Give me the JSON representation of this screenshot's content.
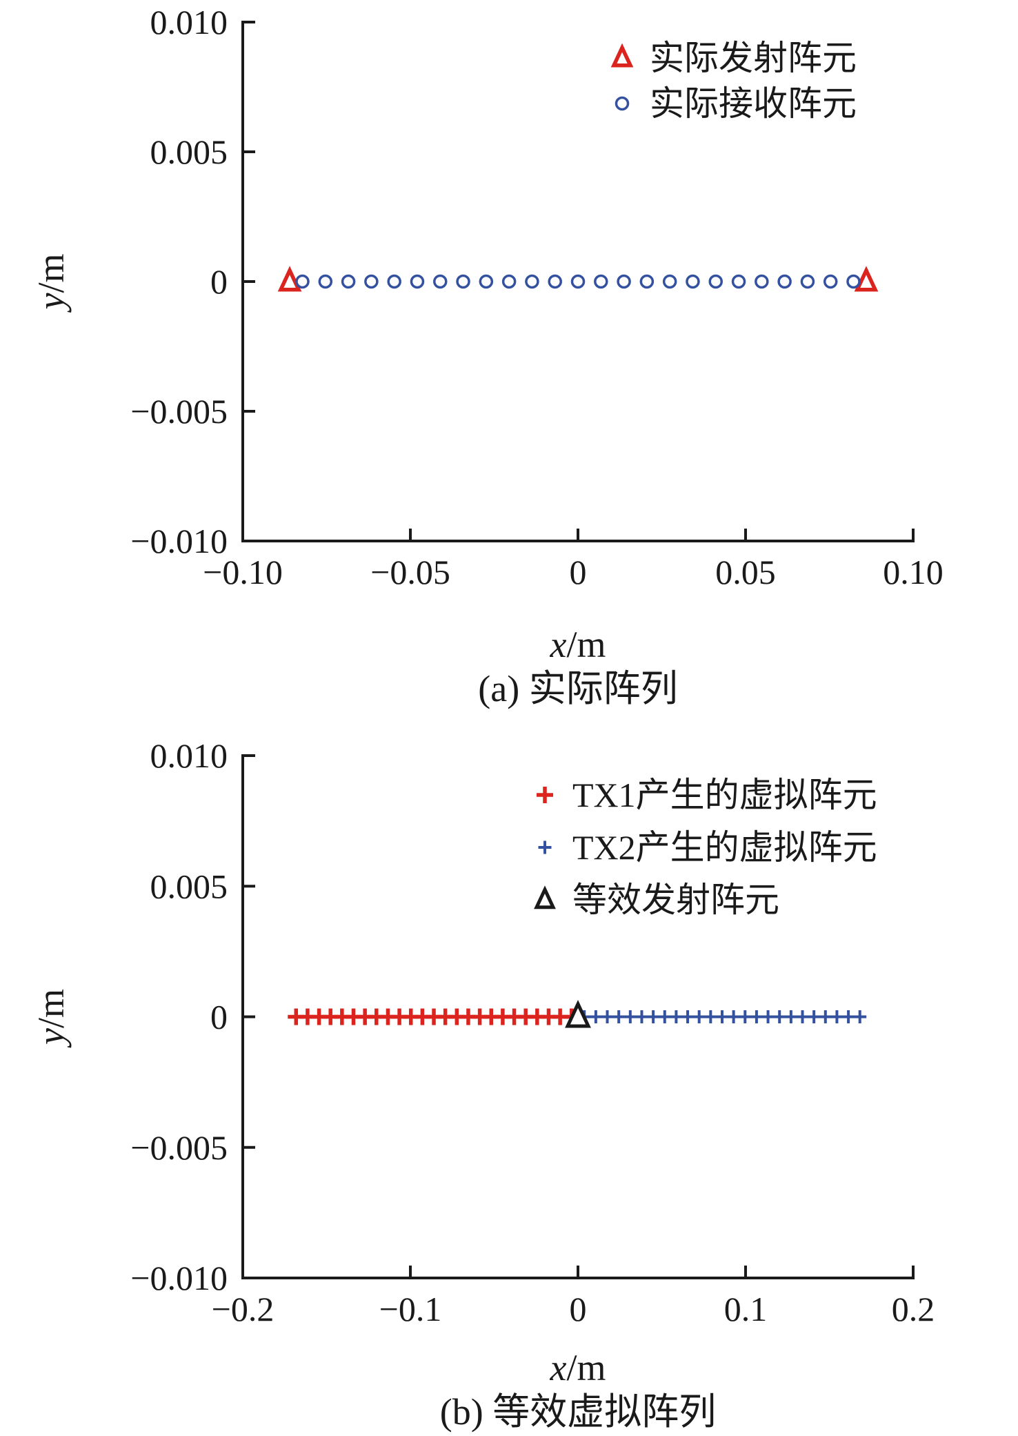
{
  "figure": {
    "background": "#ffffff",
    "colors": {
      "red": "#DC241F",
      "blue": "#33519E",
      "black": "#1A1A1A"
    }
  },
  "chart_data": [
    {
      "id": "a",
      "type": "scatter",
      "caption": "(a) 实际阵列",
      "xlabel": "x/m",
      "ylabel": "y/m",
      "xlim": [
        -0.1,
        0.1
      ],
      "ylim": [
        -0.01,
        0.01
      ],
      "grid": false,
      "legend_position": "upper-right-inside-no-box",
      "xticks": [
        -0.1,
        -0.05,
        0,
        0.05,
        0.1
      ],
      "xtick_labels": [
        "−0.10",
        "−0.05",
        "0",
        "0.05",
        "0.10"
      ],
      "yticks": [
        0.01,
        0.005,
        0,
        -0.005,
        -0.01
      ],
      "ytick_labels": [
        "0.010",
        "0.005",
        "0",
        "−0.005",
        "−0.010"
      ],
      "series": [
        {
          "name": "实际发射阵元",
          "marker": "triangle-open",
          "color_key": "red",
          "y": 0,
          "x": [
            -0.086,
            0.086
          ]
        },
        {
          "name": "实际接收阵元",
          "marker": "circle-open",
          "color_key": "blue",
          "y": 0,
          "x": [
            -0.0822,
            -0.07535,
            -0.0685,
            -0.06165,
            -0.0548,
            -0.04795,
            -0.0411,
            -0.03425,
            -0.0274,
            -0.02055,
            -0.0137,
            -0.00685,
            0,
            0.00685,
            0.0137,
            0.02055,
            0.0274,
            0.03425,
            0.0411,
            0.04795,
            0.0548,
            0.06165,
            0.0685,
            0.07535,
            0.0822
          ]
        }
      ]
    },
    {
      "id": "b",
      "type": "scatter",
      "caption": "(b) 等效虚拟阵列",
      "xlabel": "x/m",
      "ylabel": "y/m",
      "xlim": [
        -0.2,
        0.2
      ],
      "ylim": [
        -0.01,
        0.01
      ],
      "grid": false,
      "legend_position": "upper-right-inside-no-box",
      "xticks": [
        -0.2,
        -0.1,
        0,
        0.1,
        0.2
      ],
      "xtick_labels": [
        "−0.2",
        "−0.1",
        "0",
        "0.1",
        "0.2"
      ],
      "yticks": [
        0.01,
        0.005,
        0,
        -0.005,
        -0.01
      ],
      "ytick_labels": [
        "0.010",
        "0.005",
        "0",
        "−0.005",
        "−0.010"
      ],
      "series": [
        {
          "name": "TX1产生的虚拟阵元",
          "marker": "plus",
          "size": "large",
          "color_key": "red",
          "y": 0,
          "x": [
            -0.1682,
            -0.16135,
            -0.1545,
            -0.14765,
            -0.1408,
            -0.13395,
            -0.1271,
            -0.12025,
            -0.1134,
            -0.10655,
            -0.0997,
            -0.09285,
            -0.086,
            -0.07915,
            -0.0723,
            -0.06545,
            -0.0586,
            -0.05175,
            -0.0449,
            -0.03805,
            -0.0312,
            -0.02435,
            -0.0175,
            -0.01065,
            -0.0038
          ]
        },
        {
          "name": "TX2产生的虚拟阵元",
          "marker": "plus",
          "size": "small",
          "color_key": "blue",
          "y": 0,
          "x": [
            0.0038,
            0.01065,
            0.0175,
            0.02435,
            0.0312,
            0.03805,
            0.0449,
            0.05175,
            0.0586,
            0.06545,
            0.0723,
            0.07915,
            0.086,
            0.09285,
            0.0997,
            0.10655,
            0.1134,
            0.12025,
            0.1271,
            0.13395,
            0.1408,
            0.14765,
            0.1545,
            0.16135,
            0.1682
          ]
        },
        {
          "name": "等效发射阵元",
          "marker": "triangle-open",
          "size": "default",
          "color_key": "black",
          "y": 0,
          "x": [
            0
          ]
        }
      ]
    }
  ]
}
